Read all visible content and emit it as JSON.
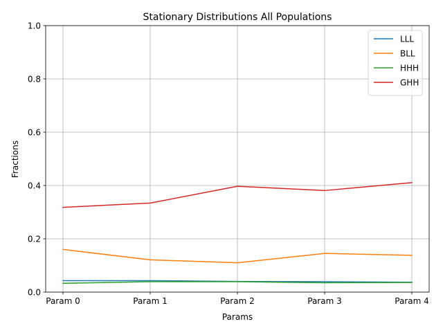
{
  "chart_data": {
    "type": "line",
    "title": "Stationary Distributions All Populations",
    "xlabel": "Params",
    "ylabel": "Fractions",
    "categories": [
      "Param 0",
      "Param 1",
      "Param 2",
      "Param 3",
      "Param 4"
    ],
    "ylim": [
      0,
      1.0
    ],
    "yticks": [
      "0.0",
      "0.2",
      "0.4",
      "0.6",
      "0.8",
      "1.0"
    ],
    "grid": true,
    "legend_position": "top-right",
    "series": [
      {
        "name": "LLL",
        "color": "#1f77b4",
        "values": [
          0.043,
          0.043,
          0.04,
          0.039,
          0.037
        ]
      },
      {
        "name": "BLL",
        "color": "#ff7f0e",
        "values": [
          0.16,
          0.121,
          0.11,
          0.145,
          0.138
        ]
      },
      {
        "name": "HHH",
        "color": "#2ca02c",
        "values": [
          0.033,
          0.039,
          0.039,
          0.035,
          0.036
        ]
      },
      {
        "name": "GHH",
        "color": "#d62728",
        "values": [
          0.318,
          0.334,
          0.397,
          0.381,
          0.411
        ]
      }
    ]
  }
}
